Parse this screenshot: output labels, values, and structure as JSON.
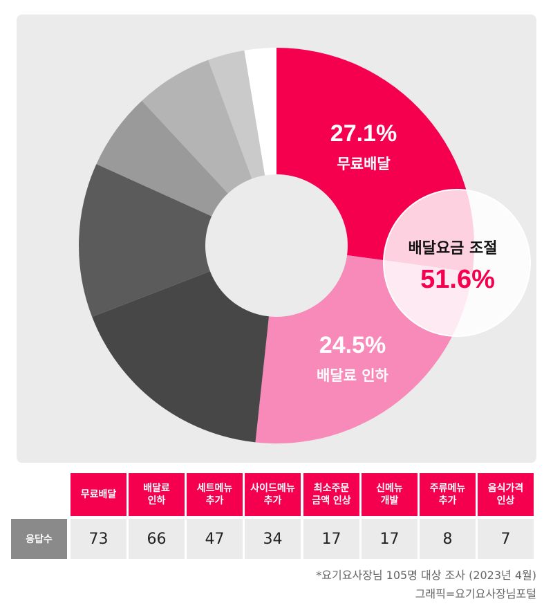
{
  "chart_data": {
    "type": "pie",
    "categories": [
      "무료배달",
      "배달료 인하",
      "세트메뉴 추가",
      "사이드메뉴 추가",
      "최소주문 금액 인상",
      "신메뉴 개발",
      "주류메뉴 추가",
      "음식가격 인상"
    ],
    "values": [
      27.1,
      24.5,
      17.4,
      12.6,
      6.3,
      6.3,
      3.0,
      2.6
    ],
    "colors": [
      "#f5004f",
      "#f78ab8",
      "#474747",
      "#5b5b5b",
      "#9a9a9a",
      "#b4b4b4",
      "#cacaca",
      "#ffffff"
    ],
    "labels": [
      {
        "percent": "27.1%",
        "name": "무료배달"
      },
      {
        "percent": "24.5%",
        "name": "배달료 인하"
      }
    ],
    "callout": {
      "title": "배달요금 조절",
      "value": "51.6%"
    }
  },
  "table": {
    "headers": [
      "무료배달",
      "배달료\n인하",
      "세트메뉴\n추가",
      "사이드메뉴\n추가",
      "최소주문\n금액 인상",
      "신메뉴\n개발",
      "주류메뉴\n추가",
      "음식가격\n인상"
    ],
    "row_label": "응답수",
    "values": [
      "73",
      "66",
      "47",
      "34",
      "17",
      "17",
      "8",
      "7"
    ]
  },
  "footnote": {
    "line1": "*요기요사장님 105명 대상 조사 (2023년 4월)",
    "line2": "그래픽=요기요사장님포털"
  }
}
